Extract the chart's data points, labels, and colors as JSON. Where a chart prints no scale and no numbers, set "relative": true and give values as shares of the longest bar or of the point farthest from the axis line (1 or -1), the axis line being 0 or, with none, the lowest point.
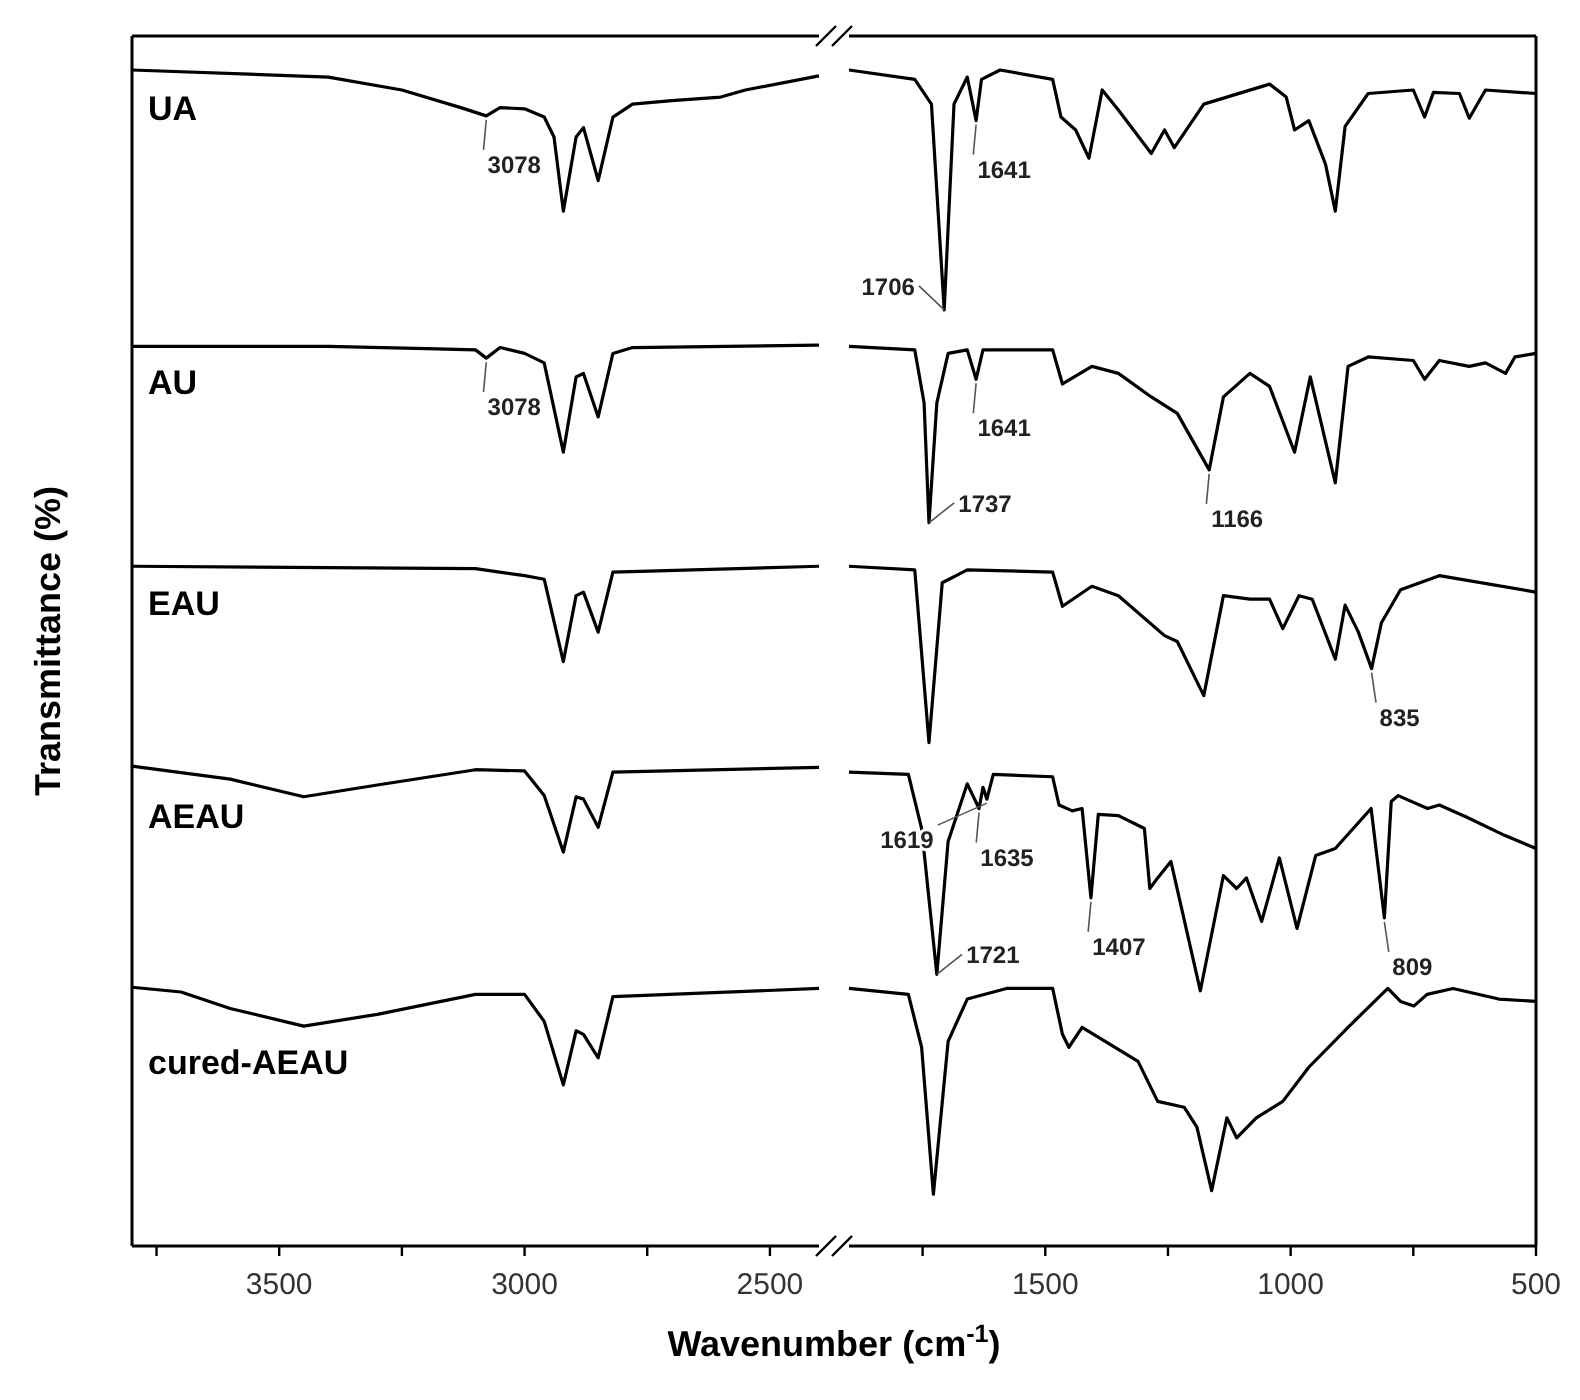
{
  "chart_data": [
    {
      "type": "line",
      "relative": true,
      "ylabel": "Transmittance (%)",
      "xlabel": "Wavenumber (cm$^{-1}$)",
      "xlim": [
        3800,
        2400
      ],
      "xticks": [
        {
          "value": 3750,
          "label": null
        },
        3500,
        {
          "value": 3250,
          "label": null
        },
        3000,
        {
          "value": 2750,
          "label": null
        },
        2500
      ],
      "series": [
        {
          "name": "UA",
          "color": "#000000",
          "x": [
            3800,
            3400,
            3250,
            3130,
            3078,
            3050,
            3000,
            2960,
            2940,
            2921,
            2895,
            2880,
            2850,
            2820,
            2780,
            2700,
            2600,
            2550,
            2400
          ],
          "values": [
            1.0,
            0.994,
            0.983,
            0.968,
            0.961,
            0.968,
            0.967,
            0.96,
            0.943,
            0.88,
            0.943,
            0.951,
            0.906,
            0.96,
            0.971,
            0.974,
            0.977,
            0.983,
            0.995
          ]
        },
        {
          "name": "AU",
          "color": "#000000",
          "x": [
            3800,
            3400,
            3200,
            3100,
            3078,
            3050,
            3000,
            2960,
            2921,
            2895,
            2880,
            2850,
            2820,
            2780,
            2400
          ],
          "values": [
            0.765,
            0.765,
            0.763,
            0.762,
            0.755,
            0.764,
            0.759,
            0.751,
            0.675,
            0.739,
            0.742,
            0.705,
            0.759,
            0.764,
            0.766
          ]
        },
        {
          "name": "EAU",
          "color": "#000000",
          "x": [
            3800,
            3100,
            3000,
            2960,
            2921,
            2895,
            2880,
            2850,
            2820,
            2400
          ],
          "values": [
            0.578,
            0.576,
            0.57,
            0.567,
            0.497,
            0.553,
            0.556,
            0.522,
            0.573,
            0.578
          ]
        },
        {
          "name": "AEAU",
          "color": "#000000",
          "x": [
            3800,
            3600,
            3450,
            3300,
            3100,
            3000,
            2960,
            2921,
            2895,
            2880,
            2850,
            2820,
            2400
          ],
          "values": [
            0.408,
            0.397,
            0.382,
            0.392,
            0.405,
            0.404,
            0.383,
            0.335,
            0.382,
            0.38,
            0.356,
            0.403,
            0.407
          ]
        },
        {
          "name": "cured-AEAU",
          "color": "#000000",
          "x": [
            3800,
            3700,
            3600,
            3450,
            3300,
            3100,
            3000,
            2960,
            2921,
            2895,
            2880,
            2850,
            2820,
            2400
          ],
          "values": [
            0.22,
            0.216,
            0.202,
            0.187,
            0.197,
            0.214,
            0.214,
            0.191,
            0.137,
            0.183,
            0.18,
            0.16,
            0.212,
            0.219
          ]
        }
      ],
      "annotations": [
        {
          "text": "3078",
          "x": 3078,
          "y": 0.961
        },
        {
          "text": "3078",
          "x": 3078,
          "y": 0.755
        }
      ]
    },
    {
      "type": "line",
      "relative": true,
      "xlim": [
        1900,
        500
      ],
      "xticks": [
        {
          "value": 1750,
          "label": null
        },
        1500,
        {
          "value": 1250,
          "label": null
        },
        1000,
        {
          "value": 750,
          "label": null
        },
        500
      ],
      "series": [
        {
          "color": "#000000",
          "x": [
            1900,
            1766,
            1732,
            1706,
            1686,
            1659,
            1641,
            1630,
            1592,
            1485,
            1468,
            1438,
            1411,
            1384,
            1351,
            1284,
            1257,
            1237,
            1177,
            1043,
            1009,
            992,
            963,
            929,
            909,
            889,
            842,
            750,
            727,
            709,
            656,
            636,
            603,
            500
          ],
          "values": [
            1.0,
            0.992,
            0.971,
            0.796,
            0.971,
            0.994,
            0.957,
            0.992,
            1.0,
            0.992,
            0.96,
            0.949,
            0.925,
            0.983,
            0.966,
            0.929,
            0.949,
            0.934,
            0.971,
            0.988,
            0.977,
            0.949,
            0.957,
            0.92,
            0.88,
            0.952,
            0.98,
            0.983,
            0.96,
            0.981,
            0.98,
            0.959,
            0.983,
            0.98
          ]
        },
        {
          "color": "#000000",
          "x": [
            1900,
            1766,
            1747,
            1737,
            1721,
            1698,
            1659,
            1641,
            1627,
            1485,
            1465,
            1405,
            1351,
            1284,
            1231,
            1166,
            1137,
            1083,
            1043,
            992,
            960,
            909,
            883,
            842,
            750,
            727,
            697,
            636,
            603,
            562,
            543,
            500
          ],
          "values": [
            0.765,
            0.762,
            0.717,
            0.615,
            0.717,
            0.759,
            0.762,
            0.737,
            0.762,
            0.762,
            0.733,
            0.748,
            0.742,
            0.722,
            0.708,
            0.66,
            0.722,
            0.742,
            0.731,
            0.675,
            0.739,
            0.649,
            0.748,
            0.756,
            0.753,
            0.737,
            0.753,
            0.748,
            0.751,
            0.742,
            0.756,
            0.759
          ]
        },
        {
          "color": "#000000",
          "x": [
            1900,
            1766,
            1737,
            1710,
            1659,
            1485,
            1465,
            1405,
            1351,
            1257,
            1231,
            1177,
            1137,
            1083,
            1043,
            1016,
            983,
            956,
            909,
            889,
            862,
            835,
            815,
            776,
            697,
            500
          ],
          "values": [
            0.578,
            0.575,
            0.428,
            0.564,
            0.575,
            0.573,
            0.544,
            0.561,
            0.553,
            0.519,
            0.514,
            0.468,
            0.553,
            0.55,
            0.55,
            0.525,
            0.553,
            0.55,
            0.499,
            0.545,
            0.522,
            0.491,
            0.53,
            0.558,
            0.57,
            0.556
          ]
        },
        {
          "color": "#000000",
          "x": [
            1900,
            1779,
            1752,
            1721,
            1698,
            1659,
            1635,
            1627,
            1619,
            1606,
            1485,
            1472,
            1445,
            1425,
            1407,
            1392,
            1351,
            1298,
            1287,
            1271,
            1244,
            1184,
            1137,
            1110,
            1090,
            1059,
            1023,
            987,
            949,
            909,
            836,
            809,
            795,
            781,
            721,
            697,
            643,
            563,
            500
          ],
          "values": [
            0.403,
            0.401,
            0.355,
            0.231,
            0.344,
            0.393,
            0.372,
            0.39,
            0.38,
            0.401,
            0.399,
            0.375,
            0.37,
            0.372,
            0.296,
            0.367,
            0.366,
            0.355,
            0.304,
            0.313,
            0.327,
            0.217,
            0.315,
            0.304,
            0.313,
            0.276,
            0.33,
            0.27,
            0.332,
            0.338,
            0.372,
            0.279,
            0.378,
            0.383,
            0.372,
            0.375,
            0.365,
            0.349,
            0.338
          ]
        },
        {
          "color": "#000000",
          "x": [
            1900,
            1779,
            1752,
            1728,
            1698,
            1659,
            1579,
            1485,
            1465,
            1452,
            1425,
            1378,
            1311,
            1271,
            1217,
            1191,
            1161,
            1130,
            1110,
            1070,
            1016,
            963,
            883,
            802,
            776,
            749,
            722,
            669,
            576,
            500
          ],
          "values": [
            0.219,
            0.214,
            0.169,
            0.044,
            0.174,
            0.21,
            0.219,
            0.219,
            0.18,
            0.169,
            0.186,
            0.174,
            0.157,
            0.123,
            0.118,
            0.101,
            0.047,
            0.109,
            0.092,
            0.109,
            0.123,
            0.152,
            0.186,
            0.219,
            0.208,
            0.204,
            0.214,
            0.219,
            0.21,
            0.208
          ]
        }
      ],
      "annotations": [
        {
          "text": "1706",
          "x": 1706,
          "y": 0.796
        },
        {
          "text": "1641",
          "x": 1641,
          "y": 0.957
        },
        {
          "text": "1737",
          "x": 1737,
          "y": 0.615
        },
        {
          "text": "1641",
          "x": 1641,
          "y": 0.737
        },
        {
          "text": "1166",
          "x": 1166,
          "y": 0.66
        },
        {
          "text": "835",
          "x": 835,
          "y": 0.491
        },
        {
          "text": "1721",
          "x": 1721,
          "y": 0.231
        },
        {
          "text": "1635",
          "x": 1635,
          "y": 0.372
        },
        {
          "text": "1619",
          "x": 1619,
          "y": 0.38
        },
        {
          "text": "1407",
          "x": 1407,
          "y": 0.296
        },
        {
          "text": "809",
          "x": 809,
          "y": 0.279
        }
      ]
    }
  ]
}
